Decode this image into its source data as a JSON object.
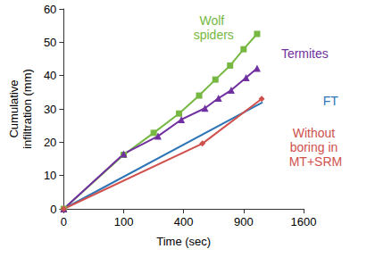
{
  "chart_data": {
    "type": "line",
    "x_label": "Time (sec)",
    "y_label": "Cumulative infiltration (mm)",
    "xlim": [
      0,
      1600
    ],
    "xticks": [
      0,
      100,
      400,
      900,
      1600
    ],
    "ylim": [
      0,
      60
    ],
    "yticks": [
      0,
      10,
      20,
      30,
      40,
      50,
      60
    ],
    "grid": false,
    "series": [
      {
        "name": "Wolf spiders",
        "color": "#77b843",
        "marker": "square",
        "x": [
          0,
          100,
          225,
          370,
          510,
          640,
          770,
          900,
          1040
        ],
        "values": [
          0,
          16.2,
          22.8,
          28.6,
          34,
          38.8,
          43,
          47.9,
          52.5
        ]
      },
      {
        "name": "Termites",
        "color": "#7030a0",
        "marker": "triangle",
        "x": [
          0,
          100,
          247,
          385,
          555,
          666,
          780,
          925,
          1040
        ],
        "values": [
          0,
          16.5,
          21.8,
          26.8,
          30.2,
          33.2,
          35.6,
          39.4,
          42.2
        ]
      },
      {
        "name": "FT",
        "color": "#2e75b6",
        "marker": "none",
        "x": [
          0,
          1100
        ],
        "values": [
          0,
          32
        ]
      },
      {
        "name": "Without boring in MT+SRM",
        "color": "#d0504d",
        "marker": "diamond",
        "x": [
          0,
          535,
          1090
        ],
        "values": [
          0,
          19.6,
          33
        ]
      }
    ]
  }
}
